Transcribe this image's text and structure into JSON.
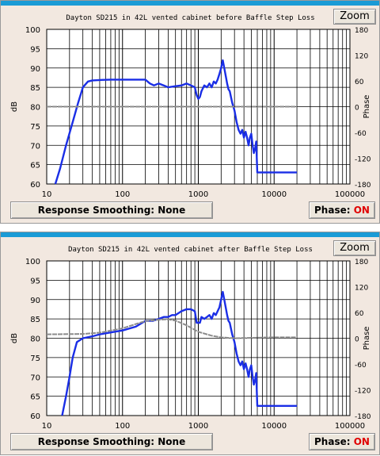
{
  "charts": [
    {
      "zoom_label": "Zoom",
      "smoothing_label": "Response Smoothing: None",
      "phase_label": "Phase:",
      "phase_state": "ON"
    },
    {
      "zoom_label": "Zoom",
      "smoothing_label": "Response Smoothing: None",
      "phase_label": "Phase:",
      "phase_state": "ON"
    }
  ],
  "chart_data": [
    {
      "type": "line",
      "title": "Dayton SD215 in 42L vented cabinet before Baffle Step Loss",
      "xlabel": "",
      "ylabel": "dB",
      "y2label": "Phase",
      "xscale": "log",
      "xlim": [
        10,
        100000
      ],
      "ylim": [
        60,
        100
      ],
      "y2lim": [
        -180,
        180
      ],
      "x_ticks": [
        "10",
        "100",
        "1000",
        "10000",
        "100000"
      ],
      "y_ticks": [
        "60",
        "65",
        "70",
        "75",
        "80",
        "85",
        "90",
        "95",
        "100"
      ],
      "y2_ticks": [
        "-180",
        "-120",
        "-60",
        "0",
        "60",
        "120",
        "180"
      ],
      "grid": true,
      "colors": {
        "response": "#1a2ee6",
        "phase": "#8c8c8c",
        "grid": "#000000"
      },
      "series": [
        {
          "x": [
            13,
            15,
            18,
            22,
            26,
            30,
            35,
            40,
            50,
            70,
            100,
            150,
            200,
            230,
            260,
            300,
            350,
            400,
            500,
            600,
            700,
            800,
            900,
            950,
            1000,
            1050,
            1100,
            1200,
            1300,
            1400,
            1500,
            1600,
            1700,
            1800,
            1900,
            2000,
            2100,
            2200,
            2300,
            2400,
            2500,
            2600,
            2800,
            3000,
            3200,
            3400,
            3600,
            3800,
            4000,
            4200,
            4400,
            4600,
            4800,
            5000,
            5200,
            5400,
            5600,
            5800,
            6000,
            7000,
            8000,
            10000,
            15000,
            20000
          ],
          "y": [
            60,
            64,
            70,
            76,
            81,
            85,
            86.5,
            86.8,
            86.9,
            87,
            87,
            87,
            87,
            86,
            85.5,
            86,
            85.5,
            85,
            85.3,
            85.5,
            86,
            85.5,
            85,
            83,
            82,
            82.5,
            84,
            85.5,
            85,
            86,
            85,
            86.5,
            86,
            87,
            88.5,
            90,
            92,
            90,
            88,
            86,
            84.5,
            84,
            81,
            79,
            76,
            74,
            73,
            74,
            72,
            73.5,
            72,
            70,
            72,
            73,
            70,
            68,
            69,
            71,
            63,
            63,
            63,
            63,
            63,
            63
          ]
        },
        {
          "x": [
            10,
            100,
            1000,
            10000,
            20000
          ],
          "y": [
            0,
            0,
            0,
            0,
            0
          ]
        }
      ]
    },
    {
      "type": "line",
      "title": "Dayton SD215 in 42L vented cabinet after Baffle Step Loss",
      "xlabel": "",
      "ylabel": "dB",
      "y2label": "Phase",
      "xscale": "log",
      "xlim": [
        10,
        100000
      ],
      "ylim": [
        60,
        100
      ],
      "y2lim": [
        -180,
        180
      ],
      "x_ticks": [
        "10",
        "100",
        "1000",
        "10000",
        "100000"
      ],
      "y_ticks": [
        "60",
        "65",
        "70",
        "75",
        "80",
        "85",
        "90",
        "95",
        "100"
      ],
      "y2_ticks": [
        "-180",
        "-120",
        "-60",
        "0",
        "60",
        "120",
        "180"
      ],
      "grid": true,
      "colors": {
        "response": "#1a2ee6",
        "phase": "#8c8c8c",
        "grid": "#000000"
      },
      "series": [
        {
          "x": [
            16,
            18,
            20,
            22,
            25,
            30,
            40,
            50,
            70,
            100,
            150,
            200,
            250,
            300,
            350,
            400,
            450,
            500,
            550,
            600,
            700,
            800,
            900,
            950,
            1000,
            1050,
            1100,
            1200,
            1300,
            1400,
            1500,
            1600,
            1700,
            1800,
            1900,
            2000,
            2100,
            2200,
            2300,
            2400,
            2500,
            2600,
            2800,
            3000,
            3200,
            3400,
            3600,
            3800,
            4000,
            4200,
            4400,
            4600,
            4800,
            5000,
            5200,
            5400,
            5600,
            5800,
            6000,
            7000,
            8000,
            10000,
            15000,
            20000
          ],
          "y": [
            60,
            65,
            70,
            75,
            79,
            80,
            80.5,
            81,
            81.5,
            82,
            83,
            84.5,
            84.5,
            85,
            85.5,
            85.5,
            86,
            86,
            86.5,
            87,
            87.5,
            87.5,
            87,
            84,
            84,
            84,
            85.5,
            85,
            85.5,
            86,
            85,
            86.5,
            86,
            87,
            88,
            90,
            92,
            90,
            88,
            86,
            84.5,
            84,
            81,
            79,
            76,
            74,
            73,
            74,
            72,
            73.5,
            72,
            70,
            72,
            73,
            70,
            68,
            69,
            71,
            62.5,
            62.5,
            62.5,
            62.5,
            62.5,
            62.5
          ]
        },
        {
          "x": [
            10,
            30,
            50,
            100,
            150,
            200,
            300,
            400,
            500,
            700,
            1000,
            1500,
            2000,
            3000,
            5000,
            10000,
            20000
          ],
          "y": [
            9,
            10,
            13,
            23,
            33,
            40,
            43,
            44,
            41,
            30,
            15,
            6,
            2,
            0,
            1,
            2,
            2
          ]
        }
      ]
    }
  ]
}
